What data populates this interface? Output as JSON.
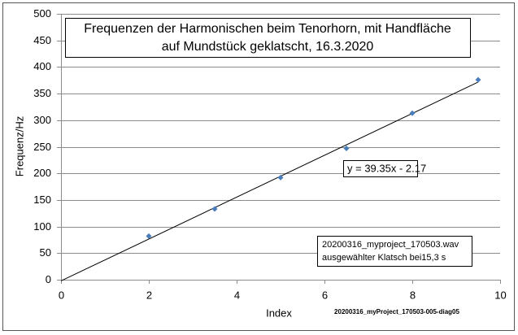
{
  "chart_data": {
    "type": "scatter",
    "title": [
      "Frequenzen der Harmonischen beim Tenorhorn, mit Handfläche",
      "auf Mundstück geklatscht,  16.3.2020"
    ],
    "x_label": "Index",
    "y_label": "Frequenz/Hz",
    "series": [
      {
        "name": "Frequenz",
        "color": "#4a7ebb",
        "x": [
          2,
          3.5,
          5,
          6.5,
          8,
          9.5
        ],
        "values": [
          82,
          133,
          192,
          247,
          313,
          376
        ]
      }
    ],
    "trendline": {
      "slope": 39.35,
      "intercept": -2.17,
      "label": "y = 39.35x - 2.17"
    },
    "xlim": [
      0,
      10
    ],
    "xticks": [
      0,
      2,
      4,
      6,
      8,
      10
    ],
    "ylim": [
      0,
      500
    ],
    "yticks": [
      0,
      50,
      100,
      150,
      200,
      250,
      300,
      350,
      400,
      450,
      500
    ],
    "grid": true,
    "legend": false,
    "annotation": [
      "20200316_myproject_170503.wav",
      "ausgewählter Klatsch bei15,3 s"
    ],
    "footer": "20200316_myProject_170503-005-diag05"
  }
}
